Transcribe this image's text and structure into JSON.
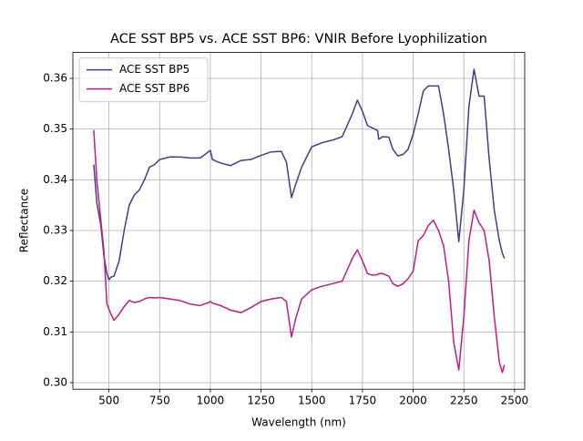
{
  "chart_data": {
    "type": "line",
    "title": "ACE SST BP5 vs. ACE SST BP6: VNIR Before Lyophilization",
    "xlabel": "Wavelength (nm)",
    "ylabel": "Reflectance",
    "x": [
      425,
      440,
      460,
      475,
      490,
      500,
      510,
      525,
      550,
      575,
      600,
      625,
      650,
      675,
      700,
      725,
      750,
      800,
      850,
      900,
      950,
      990,
      1000,
      1010,
      1050,
      1100,
      1150,
      1200,
      1250,
      1300,
      1350,
      1375,
      1400,
      1420,
      1450,
      1500,
      1550,
      1600,
      1650,
      1700,
      1725,
      1750,
      1775,
      1800,
      1825,
      1830,
      1850,
      1880,
      1900,
      1925,
      1950,
      1975,
      2000,
      2025,
      2050,
      2075,
      2100,
      2125,
      2150,
      2175,
      2200,
      2225,
      2250,
      2275,
      2300,
      2325,
      2350,
      2375,
      2400,
      2425,
      2440,
      2450
    ],
    "series": [
      {
        "name": "ACE SST BP5",
        "color": "#453c8a",
        "values": [
          0.343,
          0.3355,
          0.331,
          0.325,
          0.3215,
          0.3203,
          0.3208,
          0.321,
          0.324,
          0.33,
          0.335,
          0.337,
          0.338,
          0.34,
          0.3425,
          0.343,
          0.344,
          0.3445,
          0.3445,
          0.3443,
          0.3443,
          0.3455,
          0.3458,
          0.344,
          0.3433,
          0.3428,
          0.3438,
          0.344,
          0.3448,
          0.3455,
          0.3456,
          0.3435,
          0.3365,
          0.339,
          0.3425,
          0.3465,
          0.3473,
          0.3478,
          0.3485,
          0.353,
          0.3557,
          0.3535,
          0.3507,
          0.3502,
          0.3497,
          0.348,
          0.3485,
          0.3484,
          0.346,
          0.3447,
          0.345,
          0.346,
          0.349,
          0.353,
          0.3575,
          0.3585,
          0.3585,
          0.3585,
          0.353,
          0.346,
          0.338,
          0.3278,
          0.338,
          0.3545,
          0.3618,
          0.3565,
          0.3565,
          0.344,
          0.334,
          0.328,
          0.3255,
          0.3245
        ]
      },
      {
        "name": "ACE SST BP6",
        "color": "#c51b7d",
        "values": [
          0.3498,
          0.34,
          0.332,
          0.326,
          0.3155,
          0.3145,
          0.3135,
          0.3123,
          0.3135,
          0.315,
          0.3162,
          0.3158,
          0.316,
          0.3165,
          0.3168,
          0.3167,
          0.3168,
          0.3165,
          0.3162,
          0.3155,
          0.3152,
          0.3158,
          0.316,
          0.3157,
          0.3152,
          0.3143,
          0.3138,
          0.3148,
          0.316,
          0.3165,
          0.3168,
          0.316,
          0.309,
          0.3125,
          0.3165,
          0.3183,
          0.319,
          0.3195,
          0.32,
          0.3245,
          0.3262,
          0.324,
          0.3215,
          0.3212,
          0.3213,
          0.3215,
          0.3215,
          0.321,
          0.3195,
          0.319,
          0.3195,
          0.3205,
          0.322,
          0.328,
          0.329,
          0.331,
          0.332,
          0.33,
          0.327,
          0.32,
          0.308,
          0.3025,
          0.313,
          0.328,
          0.334,
          0.3315,
          0.33,
          0.324,
          0.313,
          0.304,
          0.302,
          0.3035
        ]
      }
    ],
    "xlim": [
      322,
      2550
    ],
    "ylim": [
      0.2987,
      0.3651
    ],
    "xticks": [
      500,
      750,
      1000,
      1250,
      1500,
      1750,
      2000,
      2250,
      2500
    ],
    "yticks": [
      {
        "value": 0.3,
        "label": "0.30"
      },
      0.31,
      0.32,
      0.33,
      0.34,
      0.35,
      0.36
    ],
    "grid": true,
    "legend": "upper-left"
  }
}
